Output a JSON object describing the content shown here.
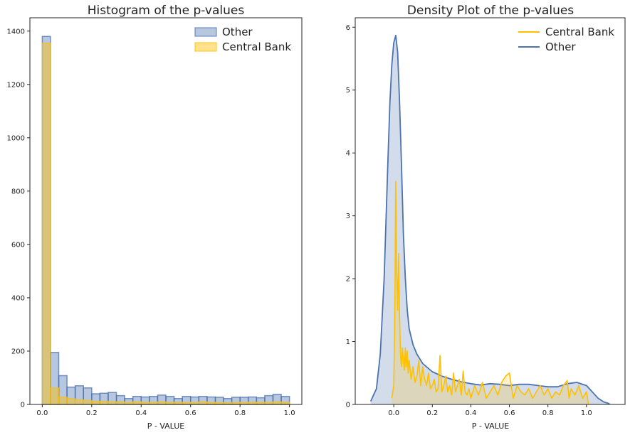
{
  "chart_data": [
    {
      "type": "bar",
      "title": "Histogram of the p-values",
      "xlabel": "P - VALUE",
      "ylabel": "",
      "xlim": [
        -0.05,
        1.05
      ],
      "ylim": [
        0,
        1450
      ],
      "xticks": [
        0.0,
        0.2,
        0.4,
        0.6,
        0.8,
        1.0
      ],
      "yticks": [
        0,
        200,
        400,
        600,
        800,
        1000,
        1200,
        1400
      ],
      "bin_width": 0.0333,
      "legend_position": "top-right",
      "legend": [
        "Other",
        "Central Bank"
      ],
      "series": [
        {
          "name": "Other",
          "color": "#4c72b0",
          "bin_starts": [
            0.0,
            0.0333,
            0.0667,
            0.1,
            0.1333,
            0.1667,
            0.2,
            0.2333,
            0.2667,
            0.3,
            0.3333,
            0.3667,
            0.4,
            0.4333,
            0.4667,
            0.5,
            0.5333,
            0.5667,
            0.6,
            0.6333,
            0.6667,
            0.7,
            0.7333,
            0.7667,
            0.8,
            0.8333,
            0.8667,
            0.9,
            0.9333,
            0.9667
          ],
          "values": [
            1380,
            195,
            108,
            65,
            70,
            62,
            40,
            42,
            45,
            33,
            22,
            30,
            28,
            30,
            35,
            30,
            22,
            30,
            28,
            30,
            28,
            27,
            22,
            27,
            27,
            28,
            25,
            33,
            38,
            30
          ]
        },
        {
          "name": "Central Bank",
          "color": "#ffc000",
          "bin_starts": [
            0.0,
            0.0333,
            0.0667,
            0.1,
            0.1333,
            0.1667,
            0.2,
            0.2333,
            0.2667,
            0.3,
            0.3333,
            0.3667,
            0.4,
            0.4333,
            0.4667,
            0.5,
            0.5333,
            0.5667,
            0.6,
            0.6333,
            0.6667,
            0.7,
            0.7333,
            0.7667,
            0.8,
            0.8333,
            0.8667,
            0.9,
            0.9333,
            0.9667
          ],
          "values": [
            1355,
            62,
            28,
            22,
            18,
            15,
            12,
            12,
            10,
            10,
            8,
            10,
            8,
            8,
            10,
            8,
            8,
            8,
            8,
            10,
            8,
            8,
            6,
            8,
            8,
            8,
            8,
            8,
            10,
            8
          ]
        }
      ]
    },
    {
      "type": "area",
      "title": "Density Plot of the p-values",
      "xlabel": "P - VALUE",
      "ylabel": "",
      "xlim": [
        -0.2,
        1.2
      ],
      "ylim": [
        0,
        6.15
      ],
      "xticks": [
        0.0,
        0.2,
        0.4,
        0.6,
        0.8,
        1.0
      ],
      "yticks": [
        0,
        1,
        2,
        3,
        4,
        5,
        6
      ],
      "legend_position": "top-right",
      "legend": [
        "Central Bank",
        "Other"
      ],
      "series": [
        {
          "name": "Other",
          "color": "#4c72b0",
          "filled": true,
          "x": [
            -0.12,
            -0.09,
            -0.07,
            -0.05,
            -0.03,
            -0.02,
            -0.01,
            0.0,
            0.01,
            0.02,
            0.03,
            0.04,
            0.05,
            0.06,
            0.07,
            0.08,
            0.1,
            0.12,
            0.15,
            0.2,
            0.25,
            0.3,
            0.35,
            0.4,
            0.45,
            0.5,
            0.55,
            0.6,
            0.65,
            0.7,
            0.75,
            0.8,
            0.85,
            0.9,
            0.95,
            1.0,
            1.03,
            1.06,
            1.09,
            1.12
          ],
          "y": [
            0.05,
            0.25,
            0.8,
            2.0,
            3.9,
            4.8,
            5.4,
            5.75,
            5.87,
            5.6,
            4.8,
            3.8,
            2.7,
            2.0,
            1.5,
            1.2,
            0.95,
            0.8,
            0.65,
            0.52,
            0.45,
            0.4,
            0.36,
            0.33,
            0.31,
            0.33,
            0.32,
            0.3,
            0.32,
            0.32,
            0.3,
            0.28,
            0.28,
            0.33,
            0.35,
            0.3,
            0.2,
            0.1,
            0.04,
            0.01
          ]
        },
        {
          "name": "Central Bank",
          "color": "#ffc000",
          "filled": true,
          "x": [
            -0.01,
            0.0,
            0.005,
            0.01,
            0.015,
            0.02,
            0.025,
            0.03,
            0.035,
            0.04,
            0.045,
            0.05,
            0.055,
            0.06,
            0.065,
            0.07,
            0.075,
            0.08,
            0.09,
            0.1,
            0.11,
            0.12,
            0.13,
            0.14,
            0.15,
            0.16,
            0.17,
            0.18,
            0.19,
            0.2,
            0.21,
            0.22,
            0.23,
            0.24,
            0.25,
            0.26,
            0.27,
            0.28,
            0.29,
            0.3,
            0.31,
            0.32,
            0.33,
            0.34,
            0.35,
            0.36,
            0.37,
            0.38,
            0.39,
            0.4,
            0.42,
            0.44,
            0.46,
            0.48,
            0.5,
            0.52,
            0.54,
            0.56,
            0.58,
            0.6,
            0.62,
            0.64,
            0.66,
            0.68,
            0.7,
            0.72,
            0.74,
            0.76,
            0.78,
            0.8,
            0.82,
            0.84,
            0.86,
            0.88,
            0.9,
            0.91,
            0.92,
            0.94,
            0.96,
            0.98,
            1.0,
            1.01
          ],
          "y": [
            0.1,
            0.3,
            1.2,
            3.55,
            2.1,
            1.5,
            2.4,
            1.4,
            0.8,
            0.6,
            0.9,
            0.7,
            0.55,
            0.9,
            0.6,
            0.85,
            0.5,
            0.7,
            0.4,
            0.6,
            0.35,
            0.45,
            0.7,
            0.3,
            0.6,
            0.4,
            0.3,
            0.5,
            0.25,
            0.3,
            0.4,
            0.2,
            0.25,
            0.78,
            0.2,
            0.3,
            0.45,
            0.2,
            0.3,
            0.15,
            0.5,
            0.2,
            0.3,
            0.4,
            0.15,
            0.53,
            0.2,
            0.15,
            0.25,
            0.1,
            0.3,
            0.15,
            0.35,
            0.1,
            0.2,
            0.3,
            0.15,
            0.35,
            0.45,
            0.5,
            0.1,
            0.3,
            0.2,
            0.15,
            0.25,
            0.1,
            0.2,
            0.3,
            0.15,
            0.25,
            0.1,
            0.2,
            0.15,
            0.3,
            0.38,
            0.1,
            0.25,
            0.15,
            0.3,
            0.1,
            0.2,
            0.0
          ]
        }
      ]
    }
  ]
}
